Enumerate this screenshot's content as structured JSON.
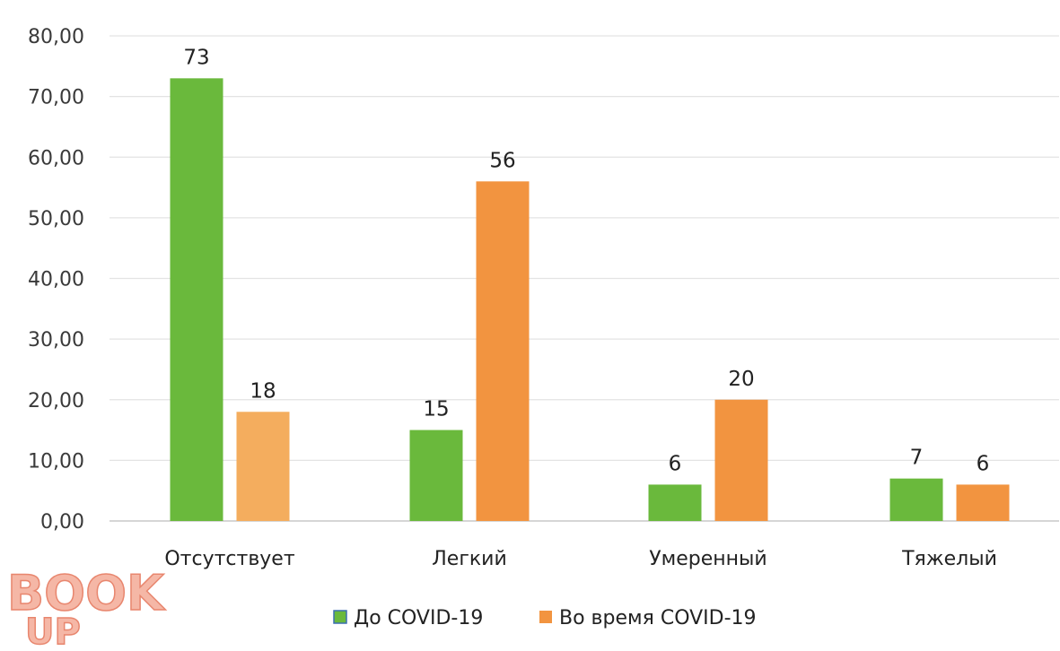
{
  "watermark": {
    "line1": "BOOK",
    "line2": "UP"
  },
  "chart_data": {
    "type": "bar",
    "categories": [
      "Отсутствует",
      "Легкий",
      "Умеренный",
      "Тяжелый"
    ],
    "series": [
      {
        "name": "До COVID-19",
        "values": [
          73,
          15,
          6,
          7
        ],
        "data_labels": [
          "73",
          "15",
          "6",
          "7"
        ],
        "color": "#6ab93c"
      },
      {
        "name": "Во время COVID-19",
        "values": [
          18,
          56,
          20,
          6
        ],
        "data_labels": [
          "18",
          "56",
          "20",
          "6"
        ],
        "color": "#f29440"
      }
    ],
    "y_ticks": [
      0,
      10,
      20,
      30,
      40,
      50,
      60,
      70,
      80
    ],
    "y_tick_labels": [
      "0,00",
      "10,00",
      "20,00",
      "30,00",
      "40,00",
      "50,00",
      "60,00",
      "70,00",
      "80,00"
    ],
    "ylim": [
      0,
      80
    ],
    "grid": true,
    "legend_position": "bottom",
    "title": "",
    "xlabel": "",
    "ylabel": ""
  }
}
